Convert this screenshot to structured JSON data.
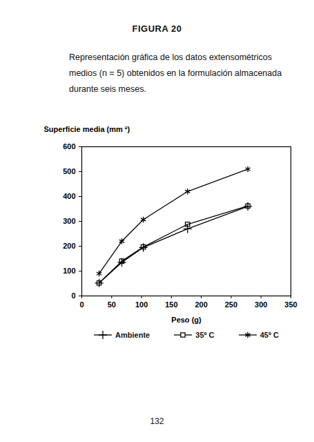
{
  "chart_data": {
    "type": "line",
    "title": "FIGURA 20",
    "subtitle": "Representación gráfica de los datos extensométricos medios (n = 5) obtenidos en la formulación almacenada durante seis meses.",
    "x_label": "Peso (g)",
    "y_label": "Superficie media (mm ²)",
    "x": [
      29,
      67,
      103,
      177,
      278
    ],
    "series": [
      {
        "name": "Ambiente",
        "color": "#000000",
        "marker": "plus",
        "values": [
          52,
          135,
          195,
          270,
          360
        ]
      },
      {
        "name": "35º C",
        "color": "#000000",
        "marker": "square",
        "values": [
          52,
          140,
          197,
          288,
          362
        ]
      },
      {
        "name": "45º C",
        "color": "#000000",
        "marker": "asterisk",
        "values": [
          90,
          220,
          307,
          420,
          510
        ]
      }
    ],
    "xlim": [
      0,
      350
    ],
    "xticks": [
      0,
      50,
      100,
      150,
      200,
      250,
      300,
      350
    ],
    "ylim": [
      0,
      600
    ],
    "yticks": [
      0,
      100,
      200,
      300,
      400,
      500,
      600
    ],
    "grid": false,
    "legend": "bottom"
  },
  "page_number": "132"
}
